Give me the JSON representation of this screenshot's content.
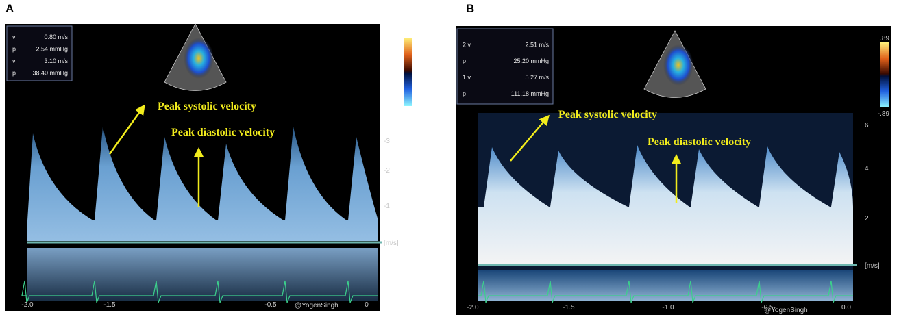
{
  "panels": [
    {
      "label": "A",
      "measurements": [
        [
          "v",
          "0.80 m/s"
        ],
        [
          "p",
          "2.54 mmHg"
        ],
        [
          "v",
          "3.10 m/s"
        ],
        [
          "p",
          "38.40 mmHg"
        ]
      ],
      "annotations": {
        "systolic": "Peak systolic velocity",
        "diastolic": "Peak diastolic velocity"
      },
      "velocity_ticks": [
        "-3",
        "-2",
        "-1",
        "[m/s]"
      ],
      "time_ticks": [
        "-2.0",
        "-1.5",
        "-0.5",
        "0"
      ],
      "watermark": "@YogenSingh"
    },
    {
      "label": "B",
      "measurements": [
        [
          "2 v",
          "2.51 m/s"
        ],
        [
          "p",
          "25.20 mmHg"
        ],
        [
          "1 v",
          "5.27 m/s"
        ],
        [
          "p",
          "111.18 mmHg"
        ]
      ],
      "annotations": {
        "systolic": "Peak systolic velocity",
        "diastolic": "Peak diastolic velocity"
      },
      "velocity_ticks": [
        "6",
        "4",
        "2",
        "[m/s]"
      ],
      "time_ticks": [
        "-2.0",
        "-1.5",
        "-1.0",
        "-0.5",
        "0.0"
      ],
      "color_scale": [
        ".89",
        "-.89"
      ],
      "watermark": "@YogenSingh"
    }
  ]
}
